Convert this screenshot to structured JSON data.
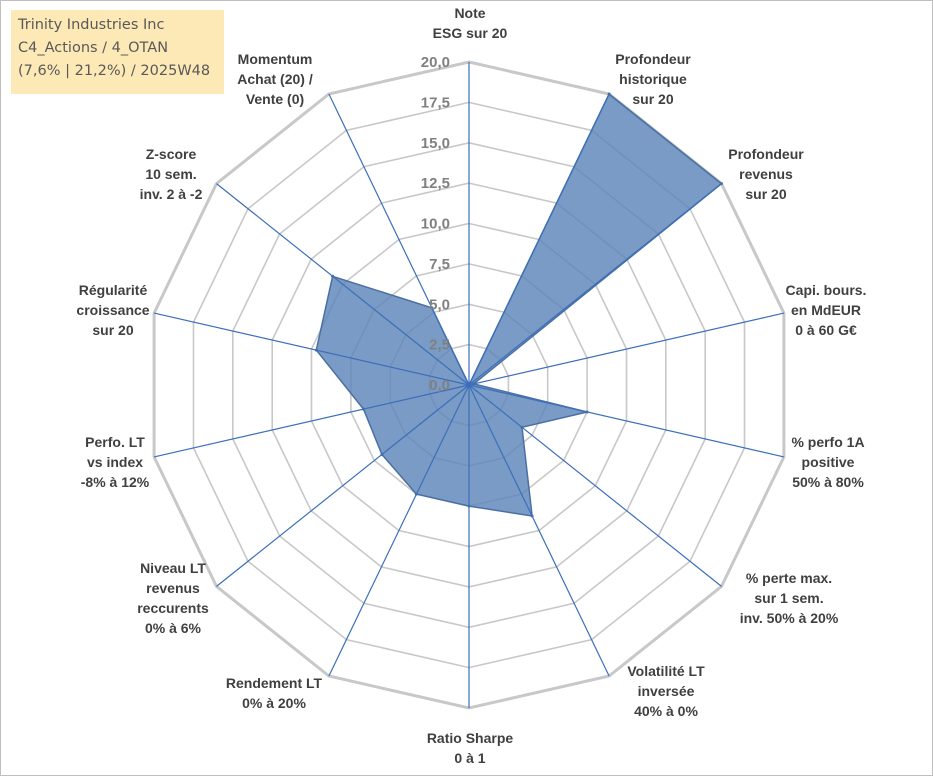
{
  "info": {
    "line1": "Trinity Industries Inc",
    "line2": "C4_Actions / 4_OTAN",
    "line3": "(7,6% | 21,2%) / 2025W48"
  },
  "colors": {
    "fill": "#5b85b8",
    "stroke": "#4a70a3",
    "spoke": "#3c6fba",
    "grid": "#c8c8c8",
    "infobox": "#fde9b6"
  },
  "chart_data": {
    "type": "radar",
    "r_range": [
      0,
      20
    ],
    "tick_values": [
      0,
      2.5,
      5,
      7.5,
      10,
      12.5,
      15,
      17.5,
      20
    ],
    "tick_labels": [
      "0,0",
      "2,5",
      "5,0",
      "7,5",
      "10,0",
      "12,5",
      "15,0",
      "17,5",
      "20,0"
    ],
    "grid": true,
    "axes": [
      {
        "label": [
          "Note",
          "ESG sur 20"
        ],
        "value": 0
      },
      {
        "label": [
          "Profondeur",
          "historique",
          "sur 20"
        ],
        "value": 20
      },
      {
        "label": [
          "Profondeur",
          "revenus",
          "sur 20"
        ],
        "value": 20
      },
      {
        "label": [
          "Capi. bours.",
          "en MdEUR",
          "0 à 60 G€"
        ],
        "value": 0.3
      },
      {
        "label": [
          "% perfo 1A",
          "positive",
          "50% à 80%"
        ],
        "value": 7.5
      },
      {
        "label": [
          "% perte max.",
          "sur 1 sem.",
          "inv. 50% à 20%"
        ],
        "value": 4.2
      },
      {
        "label": [
          "Volatilité LT",
          "inversée",
          "40% à 0%"
        ],
        "value": 9
      },
      {
        "label": [
          "Ratio Sharpe",
          "0 à 1"
        ],
        "value": 7.5
      },
      {
        "label": [
          "Rendement LT",
          "0% à 20%"
        ],
        "value": 7.5
      },
      {
        "label": [
          "Niveau LT",
          "revenus",
          "reccurents",
          "0% à 6%"
        ],
        "value": 6.9
      },
      {
        "label": [
          "Perfo. LT",
          "vs index",
          "-8% à 12%"
        ],
        "value": 6.7
      },
      {
        "label": [
          "Régularité",
          "croissance",
          "sur 20"
        ],
        "value": 9.7
      },
      {
        "label": [
          "Z-score",
          "10 sem.",
          "inv. 2 à -2"
        ],
        "value": 10.8
      },
      {
        "label": [
          "Momentum",
          "Achat (20) /",
          "Vente (0)"
        ],
        "value": 5.3
      }
    ]
  }
}
